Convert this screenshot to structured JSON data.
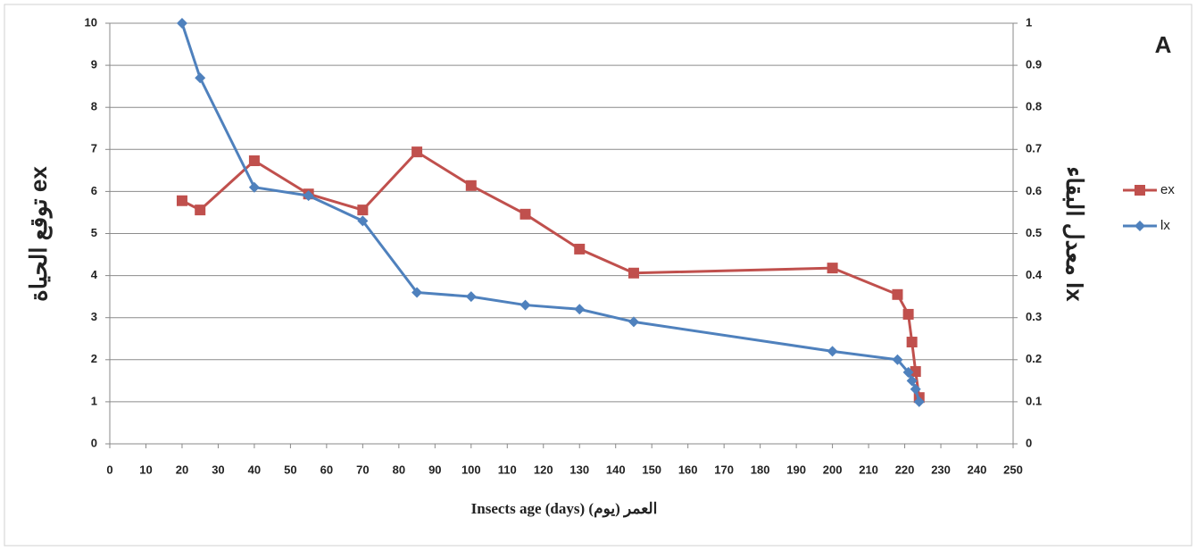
{
  "chart_data": {
    "type": "line",
    "annotation": "A",
    "xlabel": "Insects age (days)  العمر (يوم)",
    "ylabel": "توقع الحياة ex",
    "y2label": "معدل البقاء lx",
    "x": [
      20,
      25,
      40,
      55,
      70,
      85,
      100,
      115,
      130,
      145,
      200,
      218,
      221,
      222,
      223,
      224
    ],
    "series": [
      {
        "name": "ex",
        "color": "#c0504d",
        "marker": "square",
        "values": [
          5.78,
          5.56,
          6.73,
          5.94,
          5.56,
          6.94,
          6.14,
          5.46,
          4.63,
          4.06,
          4.18,
          3.55,
          3.08,
          2.42,
          1.72,
          1.1
        ]
      },
      {
        "name": "lx",
        "color": "#4f81bd",
        "marker": "diamond",
        "axis": "y2",
        "values": [
          1.0,
          0.87,
          0.61,
          0.59,
          0.53,
          0.36,
          0.35,
          0.33,
          0.32,
          0.29,
          0.22,
          0.2,
          0.17,
          0.15,
          0.13,
          0.1
        ]
      }
    ],
    "xlim": [
      0,
      250
    ],
    "xticks": [
      0,
      10,
      20,
      30,
      40,
      50,
      60,
      70,
      80,
      90,
      100,
      110,
      120,
      130,
      140,
      150,
      160,
      170,
      180,
      190,
      200,
      210,
      220,
      230,
      240,
      250
    ],
    "ylim": [
      0,
      10
    ],
    "yticks": [
      0,
      1,
      2,
      3,
      4,
      5,
      6,
      7,
      8,
      9,
      10
    ],
    "y2lim": [
      0,
      1
    ],
    "y2ticks": [
      0,
      0.1,
      0.2,
      0.3,
      0.4,
      0.5,
      0.6,
      0.7,
      0.8,
      0.9,
      1
    ],
    "grid": true,
    "legend": "right"
  }
}
